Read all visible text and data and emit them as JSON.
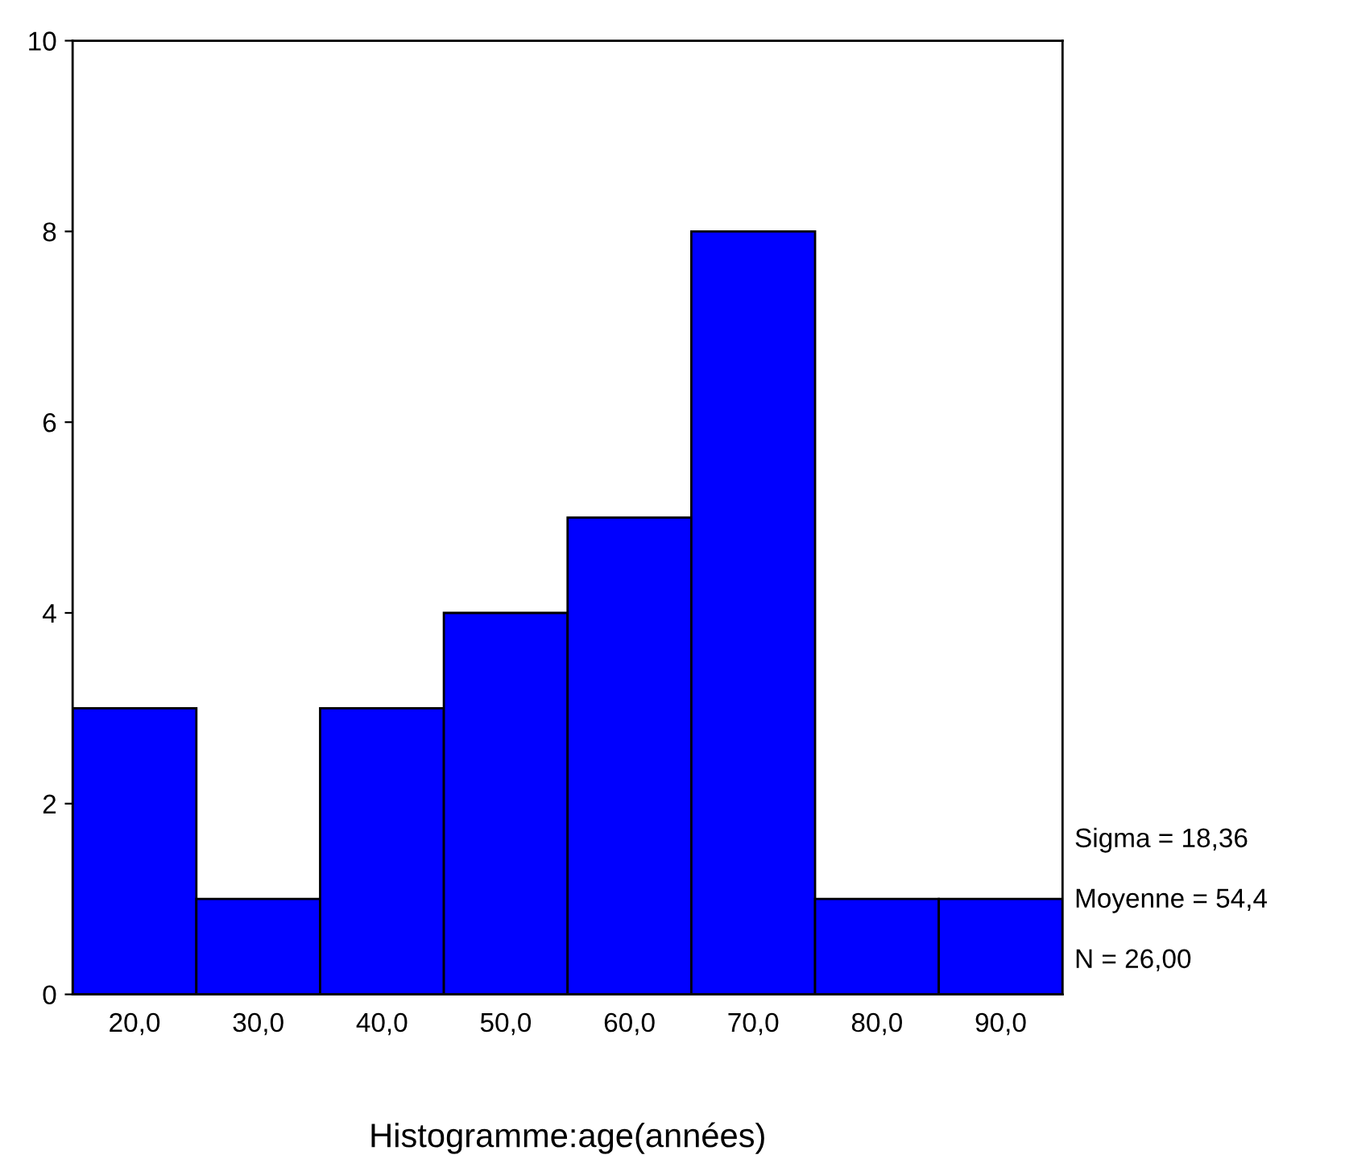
{
  "chart_data": {
    "type": "histogram",
    "xlabel": "Histogramme:age(années)",
    "bins": [
      15,
      25,
      35,
      45,
      55,
      65,
      75,
      85,
      95
    ],
    "values": [
      3,
      1,
      3,
      4,
      5,
      8,
      1,
      1
    ],
    "color": "#0000ff",
    "xlim": [
      15,
      95
    ],
    "xticks": [
      {
        "value": 20,
        "label": "20,0"
      },
      {
        "value": 30,
        "label": "30,0"
      },
      {
        "value": 40,
        "label": "40,0"
      },
      {
        "value": 50,
        "label": "50,0"
      },
      {
        "value": 60,
        "label": "60,0"
      },
      {
        "value": 70,
        "label": "70,0"
      },
      {
        "value": 80,
        "label": "80,0"
      },
      {
        "value": 90,
        "label": "90,0"
      }
    ],
    "ylim": [
      0,
      10
    ],
    "yticks": [
      0,
      2,
      4,
      6,
      8,
      10
    ],
    "grid": false,
    "annotations": [
      "Sigma = 18,36",
      "Moyenne = 54,4",
      "N = 26,00"
    ]
  }
}
